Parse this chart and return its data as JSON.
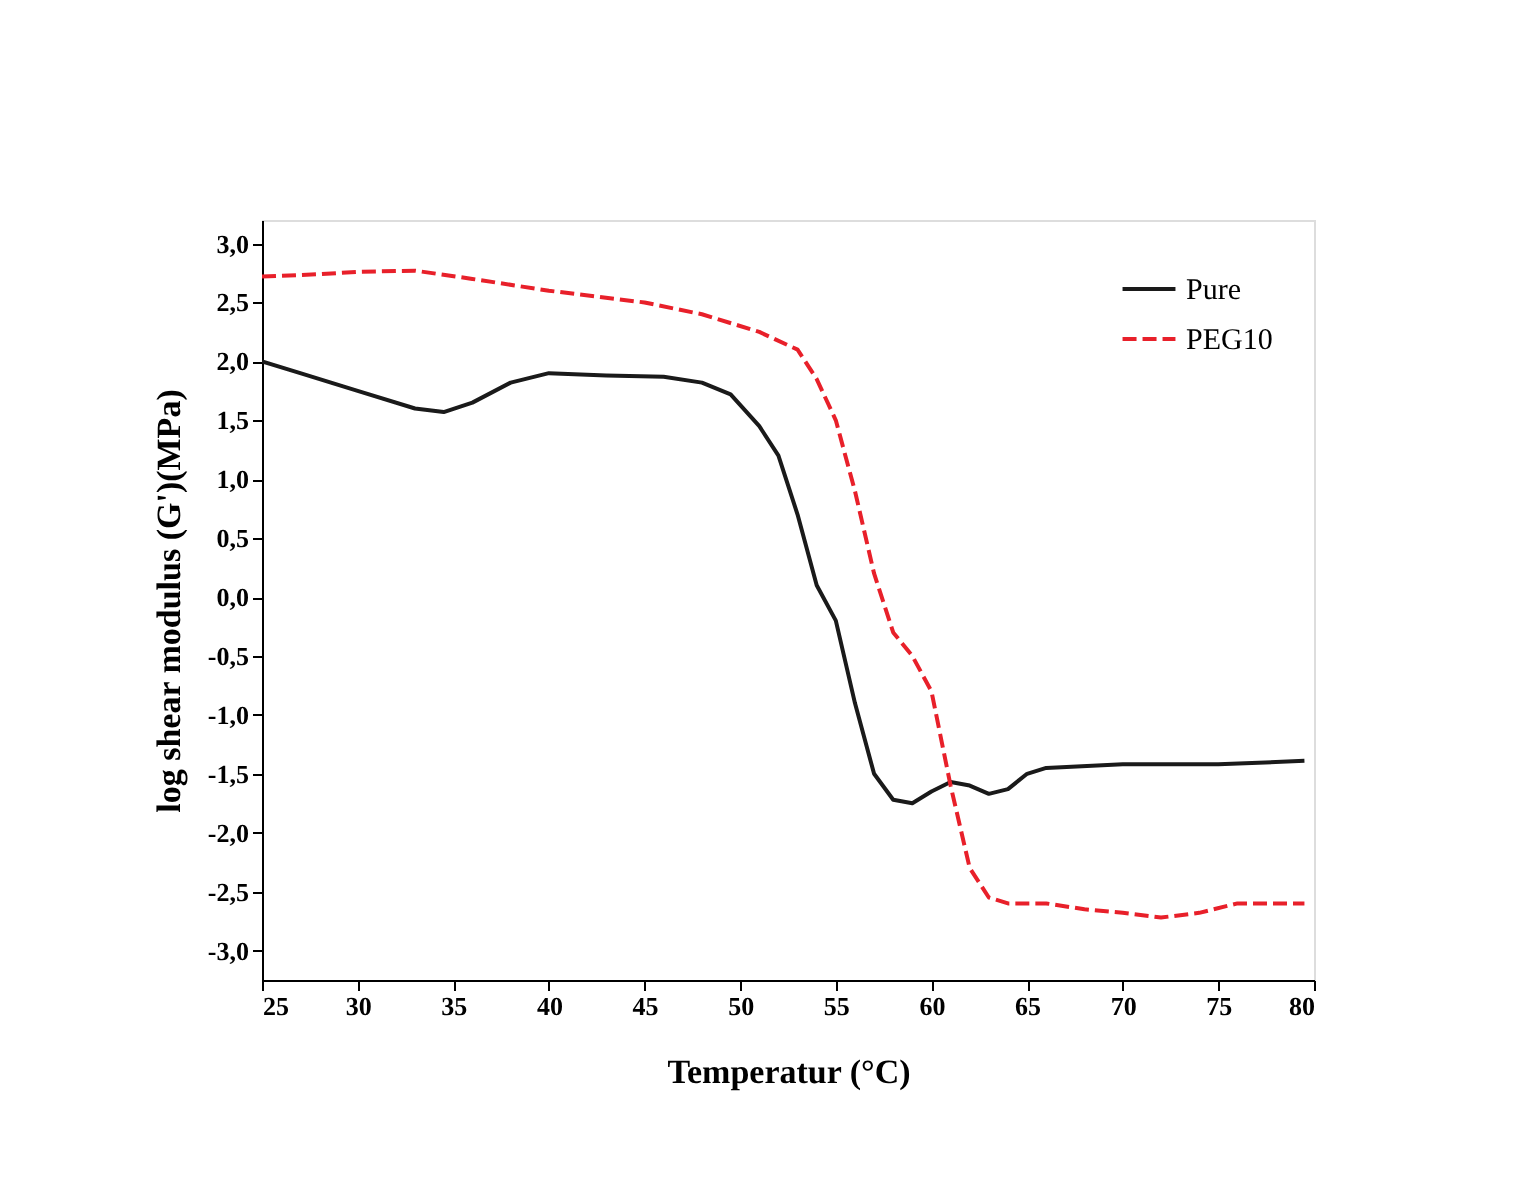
{
  "chart_data": {
    "type": "line",
    "xlabel": "Temperatur (°C)",
    "ylabel": "log shear modulus (G')(MPa)",
    "xlim": [
      25,
      80
    ],
    "ylim": [
      -3.25,
      3.2
    ],
    "xticks": [
      25,
      30,
      35,
      40,
      45,
      50,
      55,
      60,
      65,
      70,
      75,
      80
    ],
    "yticks": [
      {
        "value": -3,
        "label": "-3,0"
      },
      {
        "value": -2.5,
        "label": "-2,5"
      },
      {
        "value": -2,
        "label": "-2,0"
      },
      {
        "value": -1.5,
        "label": "-1,5"
      },
      {
        "value": -1,
        "label": "-1,0"
      },
      {
        "value": -0.5,
        "label": "-0,5"
      },
      {
        "value": 0,
        "label": "0,0"
      },
      {
        "value": 0.5,
        "label": "0,5"
      },
      {
        "value": 1,
        "label": "1,0"
      },
      {
        "value": 1.5,
        "label": "1,5"
      },
      {
        "value": 2,
        "label": "2,0"
      },
      {
        "value": 2.5,
        "label": "2,5"
      },
      {
        "value": 3,
        "label": "3,0"
      }
    ],
    "grid": false,
    "legend": "top right",
    "marker": "none",
    "series": [
      {
        "name": "Pure",
        "color": "#1a1a1a",
        "line_style": "solid",
        "x": [
          25,
          27,
          30,
          33,
          34.5,
          36,
          38,
          40,
          43,
          46,
          48,
          49.5,
          51,
          52,
          53,
          54,
          55,
          56,
          57,
          58,
          59,
          60,
          61,
          62,
          63,
          64,
          65,
          66,
          70,
          75,
          79.5
        ],
        "values": [
          2.0,
          1.9,
          1.75,
          1.6,
          1.57,
          1.65,
          1.82,
          1.9,
          1.88,
          1.87,
          1.82,
          1.72,
          1.45,
          1.2,
          0.7,
          0.1,
          -0.2,
          -0.9,
          -1.5,
          -1.72,
          -1.75,
          -1.65,
          -1.57,
          -1.6,
          -1.67,
          -1.63,
          -1.5,
          -1.45,
          -1.42,
          -1.42,
          -1.39
        ]
      },
      {
        "name": "PEG10",
        "color": "#e8202a",
        "line_style": "dashed",
        "x": [
          25,
          28,
          30,
          33,
          36,
          40,
          45,
          48,
          51,
          53,
          54,
          55,
          56,
          57,
          58,
          59,
          60,
          61,
          62,
          63,
          64,
          66,
          68,
          70,
          72,
          74,
          76,
          79.5
        ],
        "values": [
          2.72,
          2.74,
          2.76,
          2.77,
          2.7,
          2.6,
          2.5,
          2.4,
          2.25,
          2.1,
          1.85,
          1.5,
          0.9,
          0.2,
          -0.3,
          -0.5,
          -0.8,
          -1.6,
          -2.3,
          -2.55,
          -2.6,
          -2.6,
          -2.65,
          -2.68,
          -2.72,
          -2.68,
          -2.6,
          -2.6
        ]
      }
    ]
  }
}
